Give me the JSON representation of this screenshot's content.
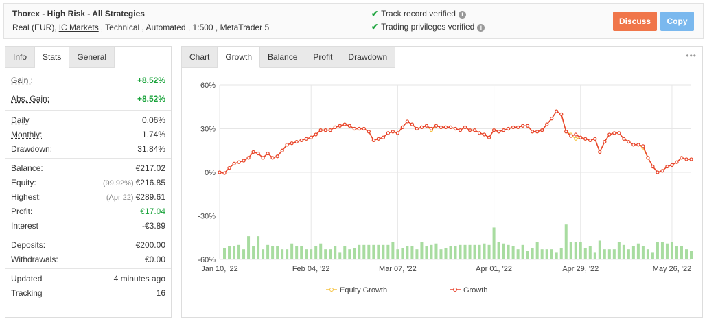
{
  "header": {
    "title": "Thorex - High Risk - All Strategies",
    "subtitle": [
      "Real (EUR),",
      "IC Markets",
      ", Technical , Automated , 1:500 , MetaTrader 5"
    ],
    "badges": [
      "Track record verified",
      "Trading privileges verified"
    ],
    "buttons": [
      "Discuss",
      "Copy"
    ]
  },
  "left_tabs": [
    "Info",
    "Stats",
    "General"
  ],
  "stats": [
    [
      {
        "label": "Gain :",
        "value": "+8.52%",
        "color": "#1aa33b"
      },
      {
        "label": "Abs. Gain:",
        "value": "+8.52%",
        "color": "#1aa33b"
      }
    ],
    [
      {
        "label": "Daily",
        "value": "0.06%"
      },
      {
        "label": "Monthly:",
        "value": "1.74%"
      },
      {
        "label": "Drawdown:",
        "value": "31.84%"
      }
    ],
    [
      {
        "label": "Balance:",
        "value": "€217.02"
      },
      {
        "label": "Equity:",
        "note": "(99.92%)",
        "value": "€216.85"
      },
      {
        "label": "Highest:",
        "note": "(Apr 22)",
        "value": "€289.61"
      },
      {
        "label": "Profit:",
        "value": "€17.04",
        "color": "#1aa33b"
      },
      {
        "label": "Interest",
        "value": "-€3.89"
      }
    ],
    [
      {
        "label": "Deposits:",
        "value": "€200.00"
      },
      {
        "label": "Withdrawals:",
        "value": "€0.00"
      }
    ],
    [
      {
        "label": "Updated",
        "value": "4 minutes ago"
      },
      {
        "label": "Tracking",
        "value": "16"
      }
    ]
  ],
  "right_tabs": [
    "Chart",
    "Growth",
    "Balance",
    "Profit",
    "Drawdown"
  ],
  "chart_data": {
    "type": "line",
    "categories": [
      "Jan 10, '22",
      null,
      null,
      null,
      null,
      null,
      null,
      null,
      null,
      null,
      null,
      null,
      null,
      null,
      null,
      null,
      null,
      null,
      null,
      "Feb 04, '22",
      null,
      null,
      null,
      null,
      null,
      null,
      null,
      null,
      null,
      null,
      null,
      null,
      null,
      null,
      null,
      null,
      null,
      "Mar 07, '22",
      null,
      null,
      null,
      null,
      null,
      null,
      null,
      null,
      null,
      null,
      null,
      null,
      null,
      null,
      null,
      null,
      null,
      null,
      null,
      "Apr 01, '22",
      null,
      null,
      null,
      null,
      null,
      null,
      null,
      null,
      null,
      null,
      null,
      null,
      null,
      null,
      null,
      null,
      null,
      "Apr 29, '22",
      null,
      null,
      null,
      null,
      null,
      null,
      null,
      null,
      null,
      null,
      null,
      null,
      null,
      null,
      null,
      null,
      null,
      null,
      "May 26, '22",
      null,
      null,
      null,
      null
    ],
    "series": [
      {
        "name": "Equity Growth",
        "color": "#f5c242",
        "values": [
          0,
          -0.5,
          3,
          6,
          7,
          8,
          10,
          14,
          13,
          10,
          13,
          10,
          11,
          15,
          19,
          20,
          21,
          22,
          23,
          24,
          26,
          29,
          29,
          29,
          31,
          32,
          33,
          32,
          30,
          30,
          30,
          28,
          22,
          23,
          24,
          27,
          28,
          27,
          31,
          35,
          33,
          30,
          31,
          32,
          29,
          32,
          31,
          31,
          31,
          30,
          29,
          31,
          29,
          29,
          27,
          26,
          24,
          29,
          28,
          29,
          30,
          31,
          31,
          32,
          32,
          28,
          28,
          29,
          33,
          37,
          42,
          40,
          28,
          26,
          23,
          24,
          23,
          22,
          23,
          14,
          21,
          26,
          27,
          27,
          23,
          21,
          19,
          19,
          17,
          10,
          4,
          0,
          1,
          4,
          5,
          7,
          10,
          9,
          9
        ]
      },
      {
        "name": "Growth",
        "color": "#e8432e",
        "values": [
          0,
          -0.5,
          3,
          6,
          7,
          8,
          10,
          14,
          13,
          10,
          13,
          10,
          11,
          15,
          19,
          20,
          21,
          22,
          23,
          24,
          26,
          29,
          29,
          29,
          31,
          32,
          33,
          32,
          30,
          30,
          30,
          28,
          22,
          23,
          24,
          27,
          28,
          27,
          31,
          35,
          33,
          30,
          31,
          32,
          30,
          32,
          31,
          31,
          31,
          30,
          29,
          31,
          29,
          29,
          27,
          26,
          24,
          29,
          28,
          29,
          30,
          31,
          31,
          32,
          32,
          28,
          28,
          29,
          33,
          37,
          42,
          40,
          28,
          25,
          26,
          24,
          23,
          22,
          23,
          14,
          21,
          26,
          27,
          27,
          23,
          21,
          19,
          19,
          18,
          10,
          4,
          0,
          1,
          4,
          5,
          7,
          10,
          9,
          9
        ]
      }
    ],
    "bars": {
      "color": "#a8dca0",
      "values": [
        -60,
        -52,
        -51,
        -51,
        -50,
        -53,
        -44,
        -51,
        -44,
        -53,
        -50,
        -51,
        -51,
        -53,
        -53,
        -49,
        -51,
        -51,
        -53,
        -53,
        -51,
        -49,
        -53,
        -53,
        -51,
        -55,
        -51,
        -53,
        -52,
        -50,
        -50,
        -50,
        -50,
        -50,
        -50,
        -50,
        -48,
        -53,
        -52,
        -51,
        -51,
        -53,
        -48,
        -51,
        -50,
        -49,
        -53,
        -52,
        -51,
        -51,
        -50,
        -50,
        -50,
        -50,
        -50,
        -49,
        -50,
        -38,
        -48,
        -49,
        -50,
        -51,
        -53,
        -50,
        -54,
        -52,
        -48,
        -53,
        -53,
        -53,
        -55,
        -52,
        -36,
        -48,
        -48,
        -48,
        -52,
        -51,
        -55,
        -47,
        -53,
        -53,
        -53,
        -48,
        -50,
        -53,
        -51,
        -49,
        -51,
        -53,
        -55,
        -48,
        -48,
        -49,
        -48,
        -51,
        -51,
        -53,
        -54
      ]
    },
    "ylim": [
      -60,
      60
    ],
    "yticks": [
      {
        "value": -60,
        "label": "-60%"
      },
      {
        "value": -30,
        "label": "-30%"
      },
      {
        "value": 0,
        "label": "0%"
      },
      {
        "value": 30,
        "label": "30%"
      },
      {
        "value": 60,
        "label": "60%"
      }
    ],
    "grid": true,
    "legend": "bottom"
  }
}
